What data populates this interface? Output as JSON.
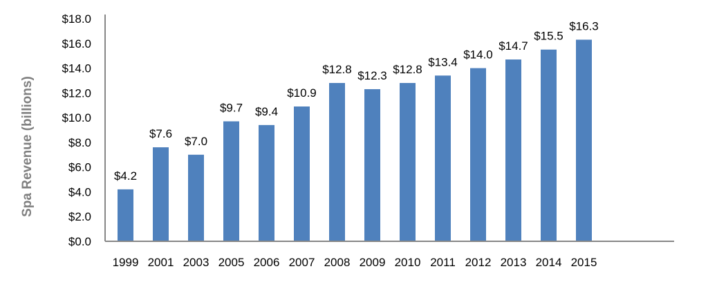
{
  "chart_data": {
    "type": "bar",
    "title": "",
    "xlabel": "",
    "ylabel": "Spa Revenue (billions)",
    "categories": [
      "1999",
      "2001",
      "2003",
      "2005",
      "2006",
      "2007",
      "2008",
      "2009",
      "2010",
      "2011",
      "2012",
      "2013",
      "2014",
      "2015"
    ],
    "values": [
      4.2,
      7.6,
      7.0,
      9.7,
      9.4,
      10.9,
      12.8,
      12.3,
      12.8,
      13.4,
      14.0,
      14.7,
      15.5,
      16.3
    ],
    "data_labels": [
      "$4.2",
      "$7.6",
      "$7.0",
      "$9.7",
      "$9.4",
      "$10.9",
      "$12.8",
      "$12.3",
      "$12.8",
      "$13.4",
      "$14.0",
      "$14.7",
      "$15.5",
      "$16.3"
    ],
    "ylim": [
      0,
      18
    ],
    "yticks": [
      0,
      2,
      4,
      6,
      8,
      10,
      12,
      14,
      16,
      18
    ],
    "ytick_labels": [
      "$0.0",
      "$2.0",
      "$4.0",
      "$6.0",
      "$8.0",
      "$10.0",
      "$12.0",
      "$14.0",
      "$16.0",
      "$18.0"
    ],
    "grid": false,
    "legend": "none",
    "colors": {
      "bar": "#4f81bd",
      "axis": "#868686",
      "ylabel": "#7f7f7f",
      "text": "#000000"
    }
  }
}
